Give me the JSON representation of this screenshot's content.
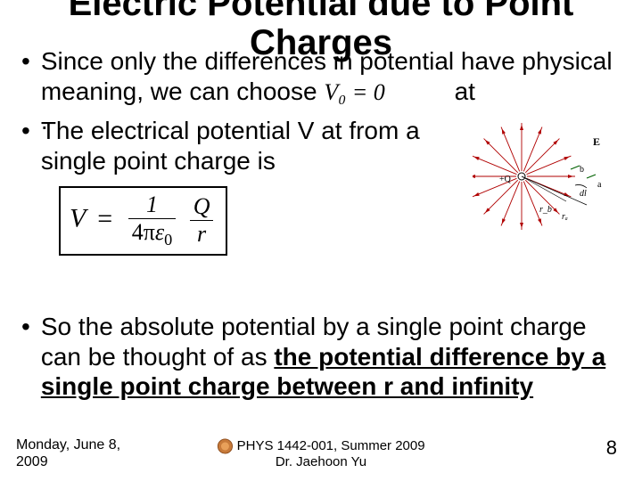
{
  "title_line1": "Electric Potential due to Point",
  "title_line2": "Charges",
  "bullets": {
    "b1_part1": "Since only the differences in potential have physical meaning, we can choose",
    "b1_inline_math1": "V₀ = 0",
    "b1_part2": "at",
    "b1_part3": ".",
    "b2": "The electrical potential V at from a single point charge is",
    "b3_part1": "So the absolute potential by a single point charge can be thought of as ",
    "b3_bold": "the potential difference by a single point charge between r and infinity"
  },
  "equation": {
    "lhs": "V",
    "eq": "=",
    "frac1_num": "1",
    "frac1_den_pre": "4π",
    "frac1_den_eps": "ε",
    "frac1_den_sub": "0",
    "frac2_num": "Q",
    "frac2_den": "r"
  },
  "diagram": {
    "labels": {
      "E": "E",
      "b": "b",
      "a": "a",
      "Q": "+Q",
      "dl": "dl",
      "ra": "rₐ",
      "rb": "r_b"
    },
    "colors": {
      "field_line": "#b00000",
      "tick": "#006000",
      "text": "#000000"
    },
    "n_lines": 16
  },
  "footer": {
    "left_line1": "Monday, June 8,",
    "left_line2": "2009",
    "center_line1": "PHYS 1442-001, Summer 2009",
    "center_line2": "Dr. Jaehoon Yu",
    "page": "8"
  },
  "colors": {
    "text": "#000000",
    "background": "#ffffff"
  },
  "fonts": {
    "body_family": "Arial",
    "body_size_pt": 21,
    "title_size_pt": 30,
    "math_family": "Times New Roman"
  }
}
